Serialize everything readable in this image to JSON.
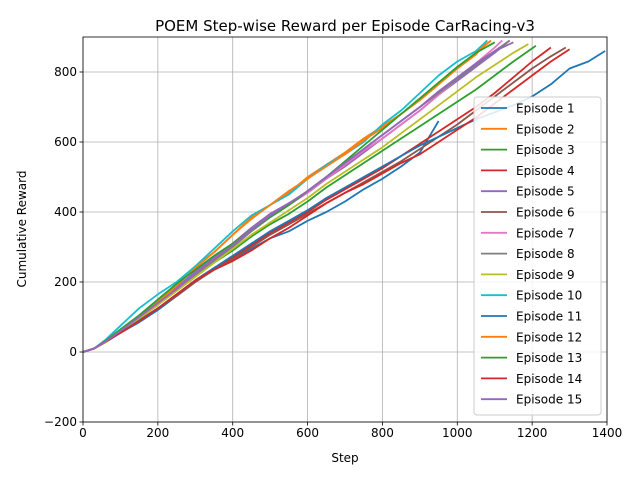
{
  "chart_data": {
    "type": "line",
    "title": "POEM Step-wise Reward per Episode CarRacing-v3",
    "xlabel": "Step",
    "ylabel": "Cumulative Reward",
    "xlim": [
      0,
      1400
    ],
    "ylim": [
      -200,
      900
    ],
    "xticks": [
      0,
      200,
      400,
      600,
      800,
      1000,
      1200,
      1400
    ],
    "yticks": [
      -200,
      0,
      200,
      400,
      600,
      800
    ],
    "grid": true,
    "legend_position": "lower-right",
    "series": [
      {
        "name": "Episode 1",
        "color": "#1f77b4",
        "x": [
          0,
          30,
          60,
          100,
          150,
          200,
          250,
          300,
          350,
          400,
          450,
          500,
          550,
          600,
          650,
          700,
          750,
          800,
          850,
          900,
          950
        ],
        "y": [
          0,
          10,
          30,
          55,
          85,
          120,
          160,
          200,
          235,
          265,
          295,
          325,
          345,
          375,
          400,
          430,
          465,
          495,
          530,
          570,
          660
        ]
      },
      {
        "name": "Episode 2",
        "color": "#ff7f0e",
        "x": [
          0,
          30,
          60,
          100,
          150,
          200,
          250,
          300,
          350,
          400,
          450,
          500,
          550,
          600,
          650,
          700,
          750,
          800,
          850,
          900,
          950,
          1000,
          1050,
          1080
        ],
        "y": [
          0,
          10,
          30,
          60,
          100,
          145,
          195,
          245,
          285,
          335,
          385,
          420,
          455,
          500,
          535,
          570,
          610,
          645,
          680,
          720,
          765,
          810,
          850,
          890
        ]
      },
      {
        "name": "Episode 3",
        "color": "#2ca02c",
        "x": [
          0,
          30,
          60,
          100,
          150,
          200,
          250,
          300,
          350,
          400,
          450,
          500,
          550,
          600,
          650,
          700,
          750,
          800,
          850,
          900,
          950,
          1000,
          1050,
          1100,
          1150,
          1210
        ],
        "y": [
          0,
          10,
          28,
          58,
          95,
          135,
          175,
          215,
          255,
          290,
          330,
          365,
          395,
          430,
          470,
          505,
          540,
          575,
          610,
          645,
          680,
          715,
          750,
          790,
          830,
          875
        ]
      },
      {
        "name": "Episode 4",
        "color": "#d62728",
        "x": [
          0,
          30,
          60,
          100,
          150,
          200,
          250,
          300,
          350,
          400,
          450,
          500,
          550,
          600,
          650,
          700,
          750,
          800,
          850,
          900,
          950,
          1000,
          1050,
          1100,
          1150,
          1200,
          1250
        ],
        "y": [
          0,
          10,
          28,
          55,
          90,
          125,
          165,
          205,
          240,
          270,
          305,
          340,
          370,
          400,
          435,
          465,
          495,
          525,
          560,
          595,
          630,
          665,
          700,
          740,
          785,
          830,
          870
        ]
      },
      {
        "name": "Episode 5",
        "color": "#9467bd",
        "x": [
          0,
          30,
          60,
          100,
          150,
          200,
          250,
          300,
          350,
          400,
          450,
          500,
          550,
          600,
          650,
          700,
          750,
          800,
          850,
          900,
          950,
          1000,
          1050,
          1100,
          1140
        ],
        "y": [
          0,
          10,
          30,
          60,
          100,
          140,
          185,
          230,
          270,
          310,
          355,
          395,
          425,
          455,
          495,
          530,
          570,
          610,
          650,
          690,
          735,
          775,
          815,
          855,
          890
        ]
      },
      {
        "name": "Episode 6",
        "color": "#8c564b",
        "x": [
          0,
          30,
          60,
          100,
          150,
          200,
          250,
          300,
          350,
          400,
          450,
          500,
          550,
          600,
          650,
          700,
          750,
          800,
          850,
          900,
          950,
          1000,
          1050,
          1100,
          1150,
          1200,
          1250,
          1290
        ],
        "y": [
          0,
          10,
          28,
          55,
          90,
          125,
          160,
          200,
          235,
          265,
          300,
          335,
          365,
          395,
          425,
          455,
          485,
          515,
          545,
          580,
          615,
          650,
          690,
          730,
          770,
          810,
          845,
          870
        ]
      },
      {
        "name": "Episode 7",
        "color": "#e377c2",
        "x": [
          0,
          30,
          60,
          100,
          150,
          200,
          250,
          300,
          350,
          400,
          450,
          500,
          550,
          600,
          650,
          700,
          750,
          800,
          850,
          900,
          950,
          1000,
          1050,
          1100,
          1120
        ],
        "y": [
          0,
          10,
          30,
          60,
          100,
          140,
          180,
          225,
          265,
          305,
          345,
          385,
          420,
          455,
          495,
          535,
          575,
          610,
          650,
          690,
          735,
          780,
          825,
          870,
          890
        ]
      },
      {
        "name": "Episode 8",
        "color": "#7f7f7f",
        "x": [
          0,
          30,
          60,
          100,
          150,
          200,
          250,
          300,
          350,
          400,
          450,
          500,
          550,
          600,
          650,
          700,
          750,
          800,
          850,
          900,
          950,
          1000,
          1050,
          1100,
          1140
        ],
        "y": [
          0,
          10,
          30,
          60,
          100,
          140,
          180,
          220,
          260,
          300,
          345,
          385,
          420,
          460,
          500,
          540,
          580,
          620,
          660,
          700,
          740,
          780,
          820,
          860,
          890
        ]
      },
      {
        "name": "Episode 9",
        "color": "#bcbd22",
        "x": [
          0,
          30,
          60,
          100,
          150,
          200,
          250,
          300,
          350,
          400,
          450,
          500,
          550,
          600,
          650,
          700,
          750,
          800,
          850,
          900,
          950,
          1000,
          1050,
          1100,
          1150,
          1190
        ],
        "y": [
          0,
          10,
          28,
          58,
          95,
          135,
          175,
          215,
          255,
          295,
          335,
          370,
          405,
          440,
          480,
          515,
          550,
          585,
          625,
          665,
          705,
          745,
          785,
          820,
          855,
          880
        ]
      },
      {
        "name": "Episode 10",
        "color": "#17becf",
        "x": [
          0,
          30,
          60,
          100,
          150,
          200,
          250,
          300,
          350,
          400,
          450,
          500,
          550,
          600,
          650,
          700,
          750,
          800,
          850,
          900,
          950,
          1000,
          1050,
          1080
        ],
        "y": [
          0,
          10,
          35,
          75,
          125,
          165,
          200,
          245,
          295,
          345,
          390,
          420,
          450,
          495,
          535,
          565,
          600,
          650,
          690,
          740,
          790,
          830,
          860,
          890
        ]
      },
      {
        "name": "Episode 11",
        "color": "#1f77b4",
        "x": [
          0,
          30,
          60,
          100,
          150,
          200,
          250,
          300,
          350,
          400,
          450,
          500,
          550,
          600,
          650,
          700,
          750,
          800,
          850,
          900,
          950,
          1000,
          1050,
          1100,
          1150,
          1200,
          1250,
          1300,
          1350,
          1395
        ],
        "y": [
          0,
          10,
          30,
          55,
          90,
          125,
          165,
          205,
          240,
          275,
          310,
          345,
          375,
          405,
          440,
          470,
          500,
          530,
          560,
          590,
          615,
          640,
          665,
          685,
          705,
          730,
          765,
          810,
          830,
          860
        ]
      },
      {
        "name": "Episode 12",
        "color": "#ff7f0e",
        "x": [
          0,
          30,
          60,
          100,
          150,
          200,
          250,
          300,
          350,
          400,
          450,
          500,
          550,
          600,
          650,
          700,
          750,
          800,
          850,
          900,
          950,
          1000,
          1050,
          1090
        ],
        "y": [
          0,
          10,
          30,
          62,
          100,
          140,
          190,
          240,
          285,
          335,
          380,
          420,
          460,
          495,
          530,
          565,
          605,
          640,
          680,
          720,
          765,
          810,
          855,
          890
        ]
      },
      {
        "name": "Episode 13",
        "color": "#2ca02c",
        "x": [
          0,
          30,
          60,
          100,
          150,
          200,
          250,
          300,
          350,
          400,
          450,
          500,
          550,
          600,
          650,
          700,
          750,
          800,
          850,
          900,
          950,
          1000,
          1050,
          1100
        ],
        "y": [
          0,
          10,
          32,
          65,
          105,
          150,
          195,
          235,
          275,
          310,
          350,
          385,
          420,
          460,
          500,
          545,
          590,
          635,
          680,
          725,
          770,
          815,
          855,
          885
        ]
      },
      {
        "name": "Episode 14",
        "color": "#d62728",
        "x": [
          0,
          30,
          60,
          100,
          150,
          200,
          250,
          300,
          350,
          400,
          450,
          500,
          550,
          600,
          650,
          700,
          750,
          800,
          850,
          900,
          950,
          1000,
          1050,
          1100,
          1150,
          1200,
          1250,
          1300
        ],
        "y": [
          0,
          10,
          30,
          55,
          88,
          125,
          165,
          205,
          235,
          260,
          290,
          325,
          355,
          390,
          425,
          455,
          480,
          510,
          540,
          565,
          600,
          635,
          670,
          710,
          750,
          790,
          830,
          865
        ]
      },
      {
        "name": "Episode 15",
        "color": "#9467bd",
        "x": [
          0,
          30,
          60,
          100,
          150,
          200,
          250,
          300,
          350,
          400,
          450,
          500,
          550,
          600,
          650,
          700,
          750,
          800,
          850,
          900,
          950,
          1000,
          1050,
          1100,
          1150
        ],
        "y": [
          0,
          10,
          30,
          60,
          100,
          140,
          180,
          225,
          265,
          305,
          350,
          390,
          425,
          460,
          500,
          540,
          580,
          620,
          660,
          700,
          745,
          785,
          825,
          860,
          885
        ]
      }
    ]
  }
}
